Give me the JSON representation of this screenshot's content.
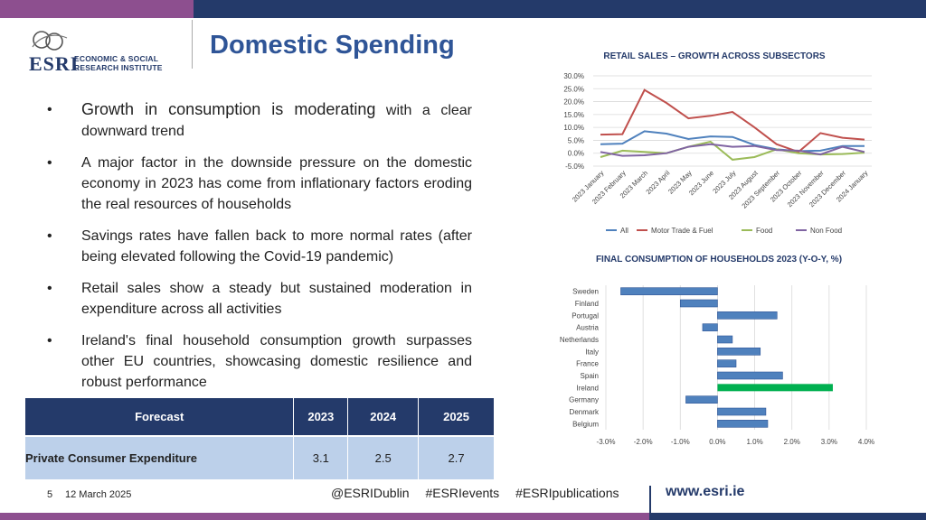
{
  "logo": {
    "acronym": "ESRI",
    "line1": "ECONOMIC & SOCIAL",
    "line2": "RESEARCH INSTITUTE"
  },
  "title": "Domestic Spending",
  "bullets": [
    {
      "lead": "Growth in consumption is moderating",
      "rest": " with a clear downward trend"
    },
    {
      "lead": "",
      "rest": "A major factor in the downside pressure on the domestic economy in 2023 has come from inflationary factors eroding the real resources of households"
    },
    {
      "lead": "",
      "rest": "Savings rates have fallen back to more normal rates (after being elevated following the Covid-19 pandemic)"
    },
    {
      "lead": "",
      "rest": "Retail sales show a steady but sustained moderation in expenditure across all activities"
    },
    {
      "lead": "",
      "rest": "Ireland's final household consumption growth surpasses other EU countries, showcasing domestic resilience and robust performance"
    }
  ],
  "forecast_table": {
    "headers": [
      "Forecast",
      "2023",
      "2024",
      "2025"
    ],
    "row": {
      "label": "Private Consumer Expenditure",
      "values": [
        "3.1",
        "2.5",
        "2.7"
      ]
    }
  },
  "footer": {
    "slide_number": "5",
    "date": "12 March 2025",
    "social": [
      "@ESRIDublin",
      "#ESRIevents",
      "#ESRIpublications"
    ],
    "website": "www.esri.ie"
  },
  "chart_data": [
    {
      "type": "line",
      "title": "RETAIL SALES – GROWTH ACROSS SUBSECTORS",
      "x": [
        "2023 January",
        "2023 February",
        "2023 March",
        "2023 April",
        "2023 May",
        "2023 June",
        "2023 July",
        "2023 August",
        "2023 September",
        "2023 October",
        "2023 November",
        "2023 December",
        "2024 January"
      ],
      "ylim": [
        -5,
        30
      ],
      "yticks": [
        "30.0%",
        "25.0%",
        "20.0%",
        "15.0%",
        "10.0%",
        "5.0%",
        "0.0%",
        "-5.0%"
      ],
      "ytick_values": [
        30,
        25,
        20,
        15,
        10,
        5,
        0,
        -5
      ],
      "grid": true,
      "legend": "bottom",
      "series": [
        {
          "name": "All",
          "color": "#4f81bd",
          "values": [
            3.5,
            3.7,
            8.5,
            7.6,
            5.5,
            6.5,
            6.3,
            3.2,
            1.5,
            0.8,
            1.0,
            2.8,
            2.8
          ]
        },
        {
          "name": "Motor Trade & Fuel",
          "color": "#c0504d",
          "values": [
            7.2,
            7.4,
            24.5,
            19.5,
            13.5,
            14.5,
            16.0,
            10.0,
            3.5,
            0.5,
            7.8,
            6.0,
            5.3
          ]
        },
        {
          "name": "Food",
          "color": "#9bbb59",
          "values": [
            -1.5,
            1.0,
            0.5,
            0.0,
            2.5,
            4.5,
            -2.5,
            -1.5,
            1.5,
            0.0,
            -0.5,
            -0.3,
            0.2
          ]
        },
        {
          "name": "Non Food",
          "color": "#8064a2",
          "values": [
            0.5,
            -1.0,
            -0.8,
            0.0,
            2.5,
            3.5,
            2.5,
            2.8,
            1.2,
            1.0,
            -0.5,
            2.5,
            0.5
          ]
        }
      ]
    },
    {
      "type": "bar",
      "orientation": "horizontal",
      "title": "FINAL CONSUMPTION OF HOUSEHOLDS 2023 (Y-O-Y, %)",
      "categories": [
        "Sweden",
        "Finland",
        "Portugal",
        "Austria",
        "Netherlands",
        "Italy",
        "France",
        "Spain",
        "Ireland",
        "Germany",
        "Denmark",
        "Belgium"
      ],
      "values": [
        -2.6,
        -1.0,
        1.6,
        -0.4,
        0.4,
        1.15,
        0.5,
        1.75,
        3.1,
        -0.85,
        1.3,
        1.35
      ],
      "highlight": "Ireland",
      "color": "#4f81bd",
      "highlight_color": "#00b050",
      "xlim": [
        -3,
        4
      ],
      "xticks": [
        "-3.0%",
        "-2.0%",
        "-1.0%",
        "0.0%",
        "1.0%",
        "2.0%",
        "3.0%",
        "4.0%"
      ],
      "xtick_values": [
        -3,
        -2,
        -1,
        0,
        1,
        2,
        3,
        4
      ],
      "grid": true
    }
  ]
}
